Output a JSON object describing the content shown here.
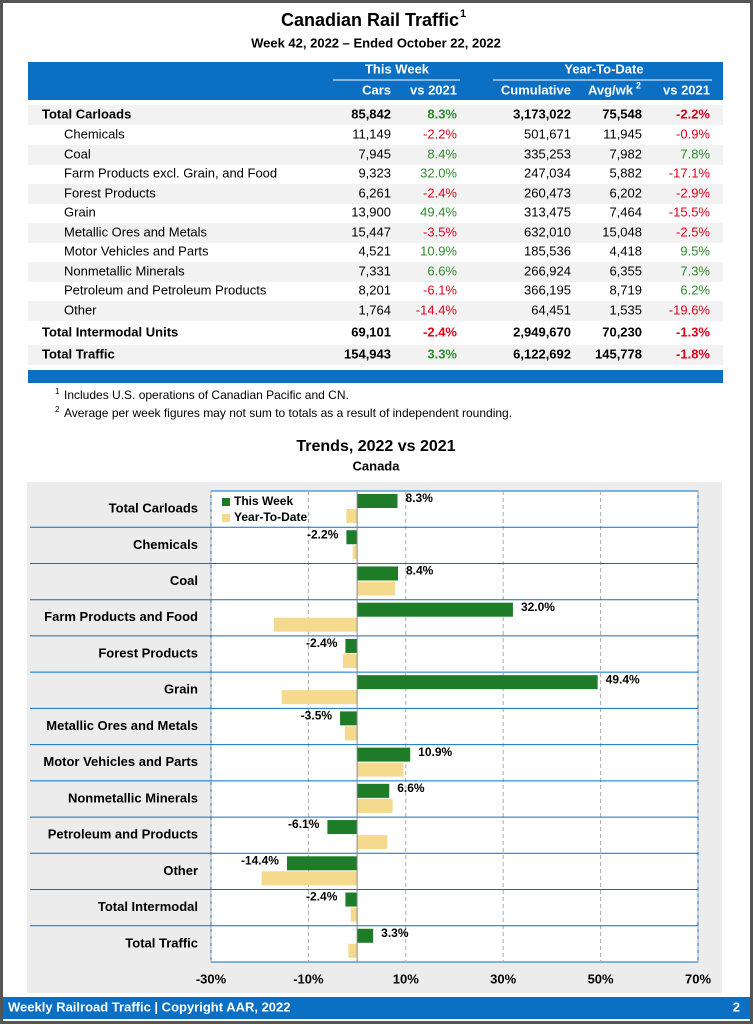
{
  "header": {
    "title": "Canadian Rail Traffic",
    "title_mark": "1",
    "subtitle": "Week 42, 2022 – Ended October 22, 2022"
  },
  "table": {
    "group_headers": [
      "This Week",
      "Year-To-Date"
    ],
    "columns": [
      "Cars",
      "vs 2021",
      "Cumulative",
      "Avg/wk",
      "vs 2021"
    ],
    "avg_mark": "2",
    "rows": [
      [
        "Total Carloads",
        "85,842",
        "8.3%",
        "3,173,022",
        "75,548",
        "-2.2%"
      ],
      [
        "Chemicals",
        "11,149",
        "-2.2%",
        "501,671",
        "11,945",
        "-0.9%"
      ],
      [
        "Coal",
        "7,945",
        "8.4%",
        "335,253",
        "7,982",
        "7.8%"
      ],
      [
        "Farm Products excl. Grain, and Food",
        "9,323",
        "32.0%",
        "247,034",
        "5,882",
        "-17.1%"
      ],
      [
        "Forest Products",
        "6,261",
        "-2.4%",
        "260,473",
        "6,202",
        "-2.9%"
      ],
      [
        "Grain",
        "13,900",
        "49.4%",
        "313,475",
        "7,464",
        "-15.5%"
      ],
      [
        "Metallic Ores and Metals",
        "15,447",
        "-3.5%",
        "632,010",
        "15,048",
        "-2.5%"
      ],
      [
        "Motor Vehicles and Parts",
        "4,521",
        "10.9%",
        "185,536",
        "4,418",
        "9.5%"
      ],
      [
        "Nonmetallic Minerals",
        "7,331",
        "6.6%",
        "266,924",
        "6,355",
        "7.3%"
      ],
      [
        "Petroleum and Petroleum Products",
        "8,201",
        "-6.1%",
        "366,195",
        "8,719",
        "6.2%"
      ],
      [
        "Other",
        "1,764",
        "-14.4%",
        "64,451",
        "1,535",
        "-19.6%"
      ],
      [
        "Total Intermodal Units",
        "69,101",
        "-2.4%",
        "2,949,670",
        "70,230",
        "-1.3%"
      ],
      [
        "Total Traffic",
        "154,943",
        "3.3%",
        "6,122,692",
        "145,778",
        "-1.8%"
      ]
    ]
  },
  "footnotes": [
    {
      "mark": "1",
      "text": "Includes U.S. operations of Canadian Pacific and CN."
    },
    {
      "mark": "2",
      "text": "Average per week figures may not sum to totals as a result of independent rounding."
    }
  ],
  "chart_data": {
    "type": "hbar",
    "title": "Trends, 2022 vs 2021",
    "subtitle": "Canada",
    "categories": [
      "Total Carloads",
      "Chemicals",
      "Coal",
      "Farm Products and Food",
      "Forest Products",
      "Grain",
      "Metallic Ores and Metals",
      "Motor Vehicles and Parts",
      "Nonmetallic Minerals",
      "Petroleum and Products",
      "Other",
      "Total Intermodal",
      "Total Traffic"
    ],
    "series": [
      {
        "name": "This Week",
        "color": "#1e7b27",
        "values": [
          8.3,
          -2.2,
          8.4,
          32.0,
          -2.4,
          49.4,
          -3.5,
          10.9,
          6.6,
          -6.1,
          -14.4,
          -2.4,
          3.3
        ],
        "value_labels": [
          "8.3%",
          "-2.2%",
          "8.4%",
          "32.0%",
          "-2.4%",
          "49.4%",
          "-3.5%",
          "10.9%",
          "6.6%",
          "-6.1%",
          "-14.4%",
          "-2.4%",
          "3.3%"
        ]
      },
      {
        "name": "Year-To-Date",
        "color": "#f5d98c",
        "values": [
          -2.2,
          -0.9,
          7.8,
          -17.1,
          -2.9,
          -15.5,
          -2.5,
          9.5,
          7.3,
          6.2,
          -19.6,
          -1.3,
          -1.8
        ]
      }
    ],
    "xlim": [
      -30,
      70
    ],
    "xticks": [
      {
        "value": -30,
        "label": "-30%"
      },
      {
        "value": -10,
        "label": "-10%"
      },
      {
        "value": 10,
        "label": "10%"
      },
      {
        "value": 30,
        "label": "30%"
      },
      {
        "value": 50,
        "label": "50%"
      },
      {
        "value": 70,
        "label": "70%"
      }
    ],
    "grid": true,
    "legend": "top-left"
  },
  "footer": {
    "text": "Weekly Railroad Traffic | Copyright AAR, 2022",
    "page": "2"
  }
}
